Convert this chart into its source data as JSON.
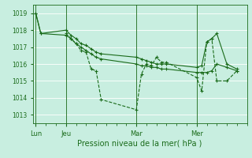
{
  "bg_color": "#c8eee0",
  "grid_color": "#ffffff",
  "line_color": "#1a6b1a",
  "marker_color": "#1a6b1a",
  "xlabel": "Pression niveau de la mer( hPa )",
  "xlabel_color": "#1a6b1a",
  "tick_color": "#1a6b1a",
  "ylim": [
    1012.5,
    1019.5
  ],
  "yticks": [
    1013,
    1014,
    1015,
    1016,
    1017,
    1018,
    1019
  ],
  "day_labels": [
    "Lun",
    "Jeu",
    "Mar",
    "Mer"
  ],
  "day_positions": [
    0,
    3,
    10,
    16
  ],
  "xlim": [
    -0.3,
    21.0
  ],
  "series1_x": [
    0,
    0.5,
    3,
    3.5,
    4,
    4.5,
    5,
    5.5,
    6,
    6.5,
    10,
    10.5,
    11,
    11.5,
    12,
    12.5,
    13,
    16,
    16.5,
    17,
    17.5,
    18,
    19,
    20
  ],
  "series1_y": [
    1019.0,
    1017.8,
    1018.0,
    1017.7,
    1017.5,
    1017.2,
    1017.1,
    1016.9,
    1016.7,
    1016.6,
    1016.4,
    1016.3,
    1016.2,
    1016.1,
    1016.0,
    1016.0,
    1016.0,
    1015.8,
    1015.9,
    1017.3,
    1017.5,
    1017.8,
    1016.0,
    1015.7
  ],
  "series2_x": [
    0,
    0.5,
    3,
    3.5,
    4,
    4.5,
    5,
    5.5,
    6,
    6.5,
    10,
    10.5,
    11,
    11.5,
    12,
    12.5,
    13,
    16,
    16.5,
    17,
    17.5,
    18,
    19,
    20
  ],
  "series2_y": [
    1019.0,
    1017.8,
    1017.7,
    1017.5,
    1017.2,
    1017.0,
    1016.8,
    1016.6,
    1016.4,
    1016.3,
    1016.0,
    1015.9,
    1015.9,
    1015.8,
    1015.8,
    1015.7,
    1015.7,
    1015.5,
    1015.5,
    1015.5,
    1015.6,
    1016.0,
    1015.8,
    1015.6
  ],
  "series3_x": [
    3,
    3.5,
    4,
    4.5,
    5,
    5.5,
    6,
    6.5,
    10,
    10.5,
    11,
    11.5,
    12,
    12.5,
    13,
    16,
    16.5,
    17,
    17.5,
    18,
    19,
    20
  ],
  "series3_y": [
    1017.8,
    1017.5,
    1017.2,
    1016.8,
    1016.7,
    1015.7,
    1015.6,
    1013.9,
    1013.3,
    1015.4,
    1016.0,
    1015.9,
    1016.4,
    1016.1,
    1016.1,
    1015.2,
    1014.4,
    1017.3,
    1017.5,
    1015.0,
    1015.0,
    1015.6
  ]
}
